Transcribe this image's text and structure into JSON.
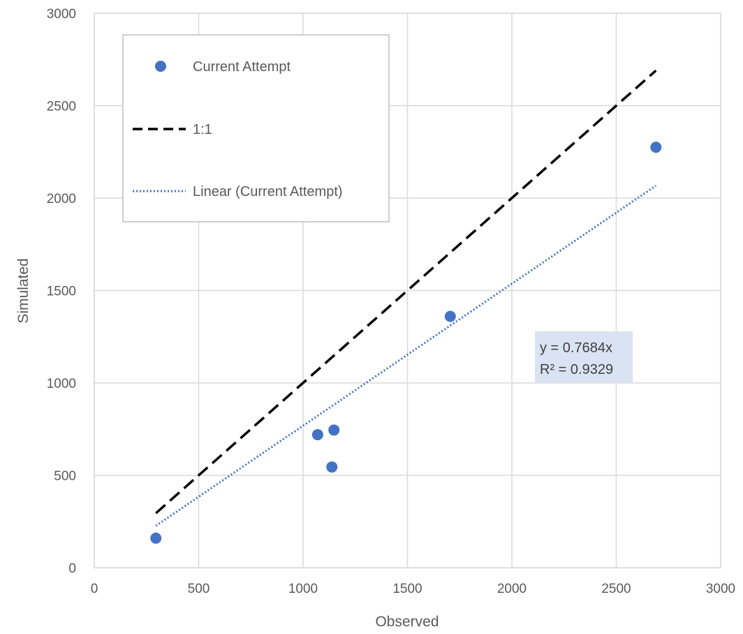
{
  "chart_data": {
    "type": "scatter",
    "title": "",
    "xlabel": "Observed",
    "ylabel": "Simulated",
    "xlim": [
      0,
      3000
    ],
    "ylim": [
      0,
      3000
    ],
    "xticks": [
      0,
      500,
      1000,
      1500,
      2000,
      2500,
      3000
    ],
    "yticks": [
      0,
      500,
      1000,
      1500,
      2000,
      2500,
      3000
    ],
    "xtick_labels": [
      "0",
      "500",
      "1000",
      "1500",
      "2000",
      "2500",
      "3000"
    ],
    "ytick_labels": [
      "0",
      "500",
      "1000",
      "1500",
      "2000",
      "2500",
      "3000"
    ],
    "grid": true,
    "legend_position": "top-left",
    "series": [
      {
        "name": "Current Attempt",
        "kind": "scatter",
        "color": "#4472C4",
        "points": [
          {
            "x": 295,
            "y": 160
          },
          {
            "x": 1070,
            "y": 720
          },
          {
            "x": 1148,
            "y": 745
          },
          {
            "x": 1138,
            "y": 545
          },
          {
            "x": 1705,
            "y": 1360
          },
          {
            "x": 2690,
            "y": 2275
          }
        ]
      },
      {
        "name": "1:1",
        "kind": "line",
        "style": "dashed",
        "color": "#000000",
        "points": [
          {
            "x": 295,
            "y": 295
          },
          {
            "x": 2690,
            "y": 2690
          }
        ]
      },
      {
        "name": "Linear (Current Attempt)",
        "kind": "line",
        "style": "dotted",
        "color": "#4472C4",
        "slope": 0.7684,
        "x_range": [
          295,
          2690
        ]
      }
    ],
    "annotation": {
      "lines": [
        "y = 0.7684x",
        "R² = 0.9329"
      ],
      "background": "#DAE3F3"
    }
  }
}
